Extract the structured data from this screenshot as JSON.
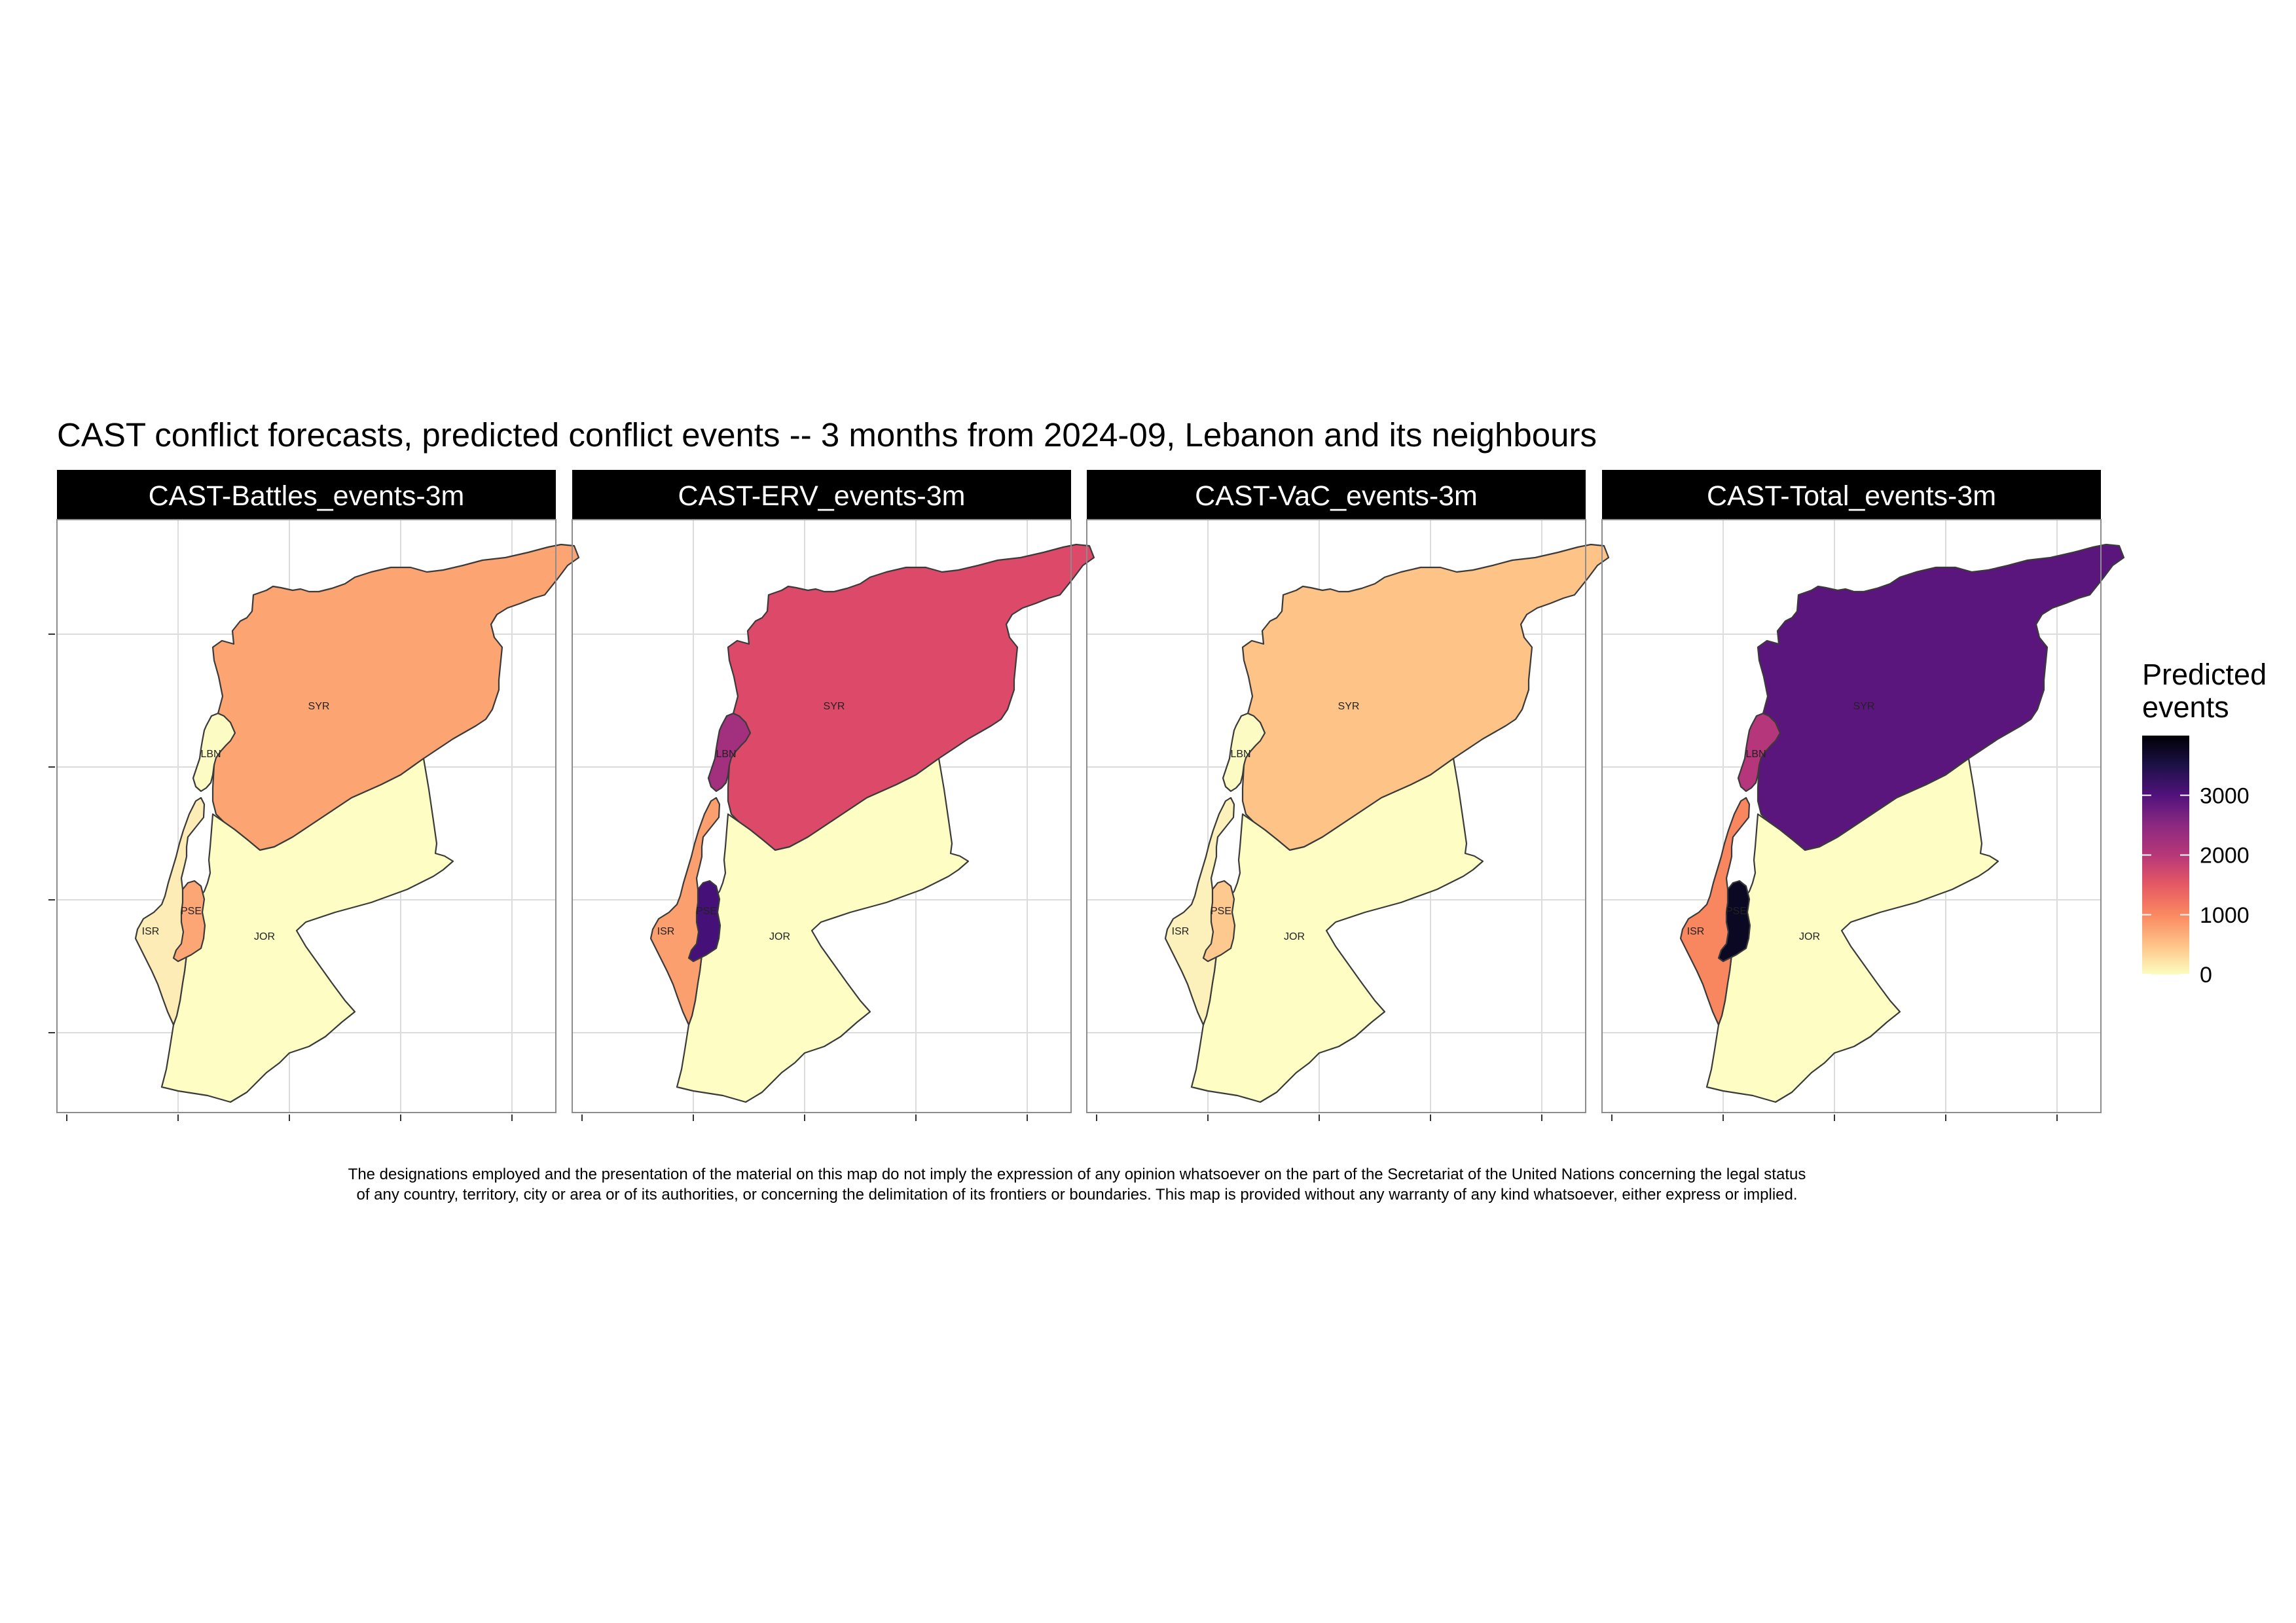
{
  "title": "CAST conflict forecasts, predicted conflict events -- 3 months from 2024-09, Lebanon and its neighbours",
  "panels": [
    {
      "label": "CAST-Battles_events-3m",
      "fills": {
        "SYR": "#fca572",
        "LBN": "#fdfbc4",
        "ISR": "#fdecb5",
        "PSE": "#fca676",
        "JOR": "#fdfdc4"
      }
    },
    {
      "label": "CAST-ERV_events-3m",
      "fills": {
        "SYR": "#dd4968",
        "LBN": "#a3307e",
        "ISR": "#fc9f6e",
        "PSE": "#451077",
        "JOR": "#fdfdc4"
      }
    },
    {
      "label": "CAST-VaC_events-3m",
      "fills": {
        "SYR": "#fec387",
        "LBN": "#fdfbc4",
        "ISR": "#fdf1bb",
        "PSE": "#fec98e",
        "JOR": "#fdfdc4"
      }
    },
    {
      "label": "CAST-Total_events-3m",
      "fills": {
        "SYR": "#5b167d",
        "LBN": "#b5367a",
        "ISR": "#f8865e",
        "PSE": "#0a0822",
        "JOR": "#fdfdc4"
      }
    }
  ],
  "countries": [
    {
      "iso": "SYR",
      "label": "SYR"
    },
    {
      "iso": "LBN",
      "label": "LBN"
    },
    {
      "iso": "ISR",
      "label": "ISR"
    },
    {
      "iso": "PSE",
      "label": "PSE"
    },
    {
      "iso": "JOR",
      "label": "JOR"
    }
  ],
  "legend": {
    "title_line1": "Predicted",
    "title_line2": "events",
    "ticks": [
      {
        "value": 3000,
        "label": "3000"
      },
      {
        "value": 2000,
        "label": "2000"
      },
      {
        "value": 1000,
        "label": "1000"
      },
      {
        "value": 0,
        "label": "0"
      }
    ],
    "scale_min": 0,
    "scale_max": 4000,
    "colormap": [
      "#fcfdbf",
      "#fec287",
      "#fb8861",
      "#e55964",
      "#b73779",
      "#8c2981",
      "#51127c",
      "#1d1147",
      "#000004"
    ]
  },
  "disclaimer": {
    "line1": "The designations employed and the presentation of the material on this map do not imply the expression of any opinion whatsoever on the part of the Secretariat of the United Nations concerning the legal status",
    "line2": "of any country, territory, city or area or of its authorities, or concerning the delimitation of its frontiers or boundaries. This map is provided without any warranty of any kind whatsoever, either express or implied."
  }
}
